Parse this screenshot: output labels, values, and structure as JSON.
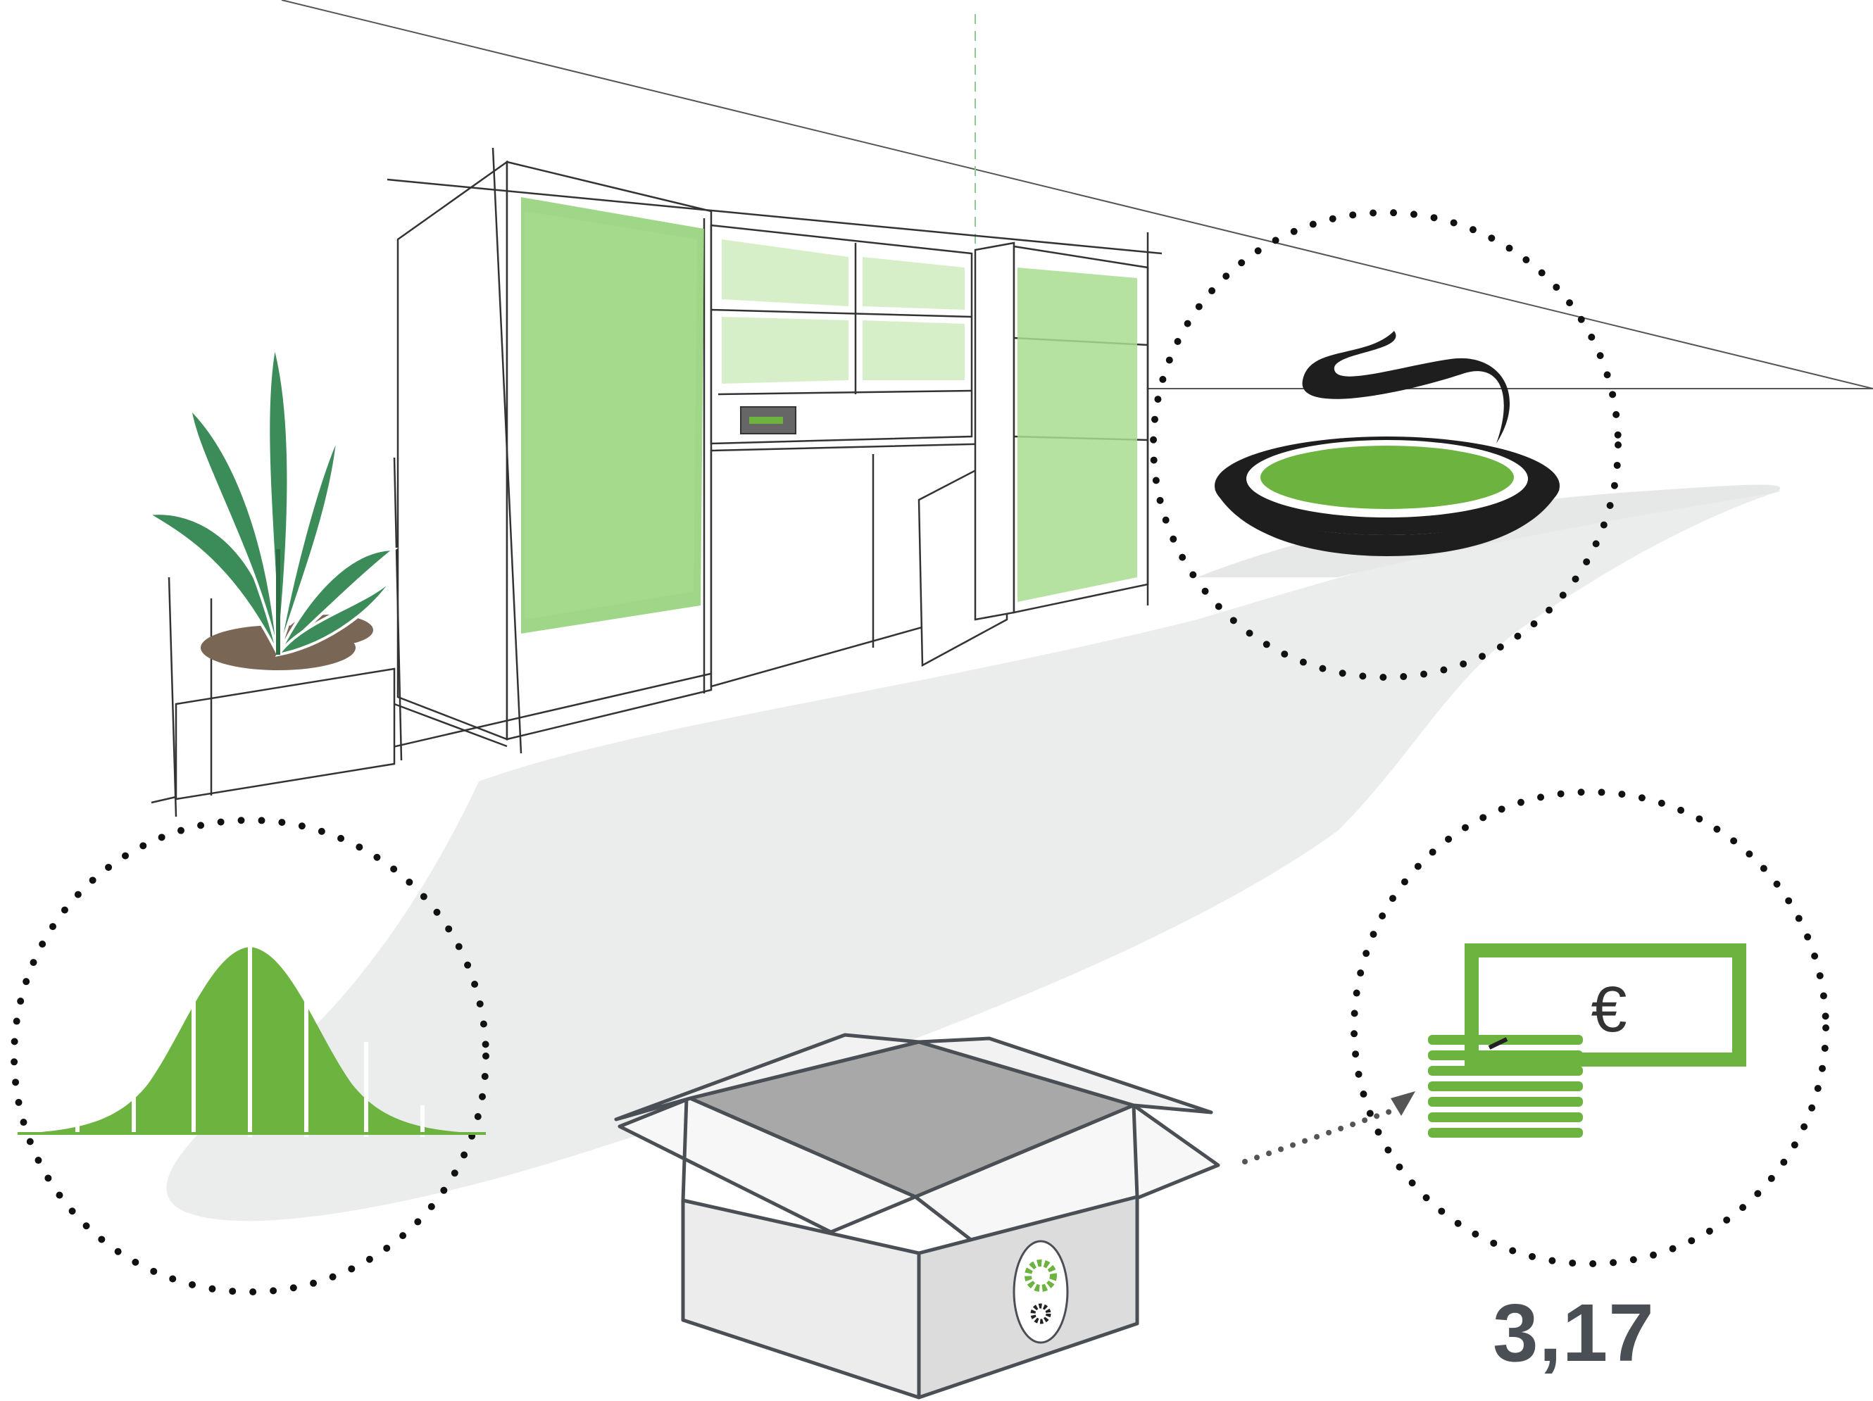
{
  "illustration": {
    "price_text": "3,17",
    "currency_symbol": "€",
    "icons": [
      "kitchen-sketch-icon",
      "plant-icon",
      "soup-bowl-icon",
      "bell-curve-icon",
      "open-box-icon",
      "gear-logo-icon",
      "money-icon"
    ]
  },
  "colors": {
    "accent_green": "#6cb43f",
    "light_green": "#a4d68a",
    "dark_gray": "#4a4f55",
    "shadow_gray": "#e8eaea",
    "soil_brown": "#7a6655",
    "bowl_black": "#1e1e1e"
  }
}
